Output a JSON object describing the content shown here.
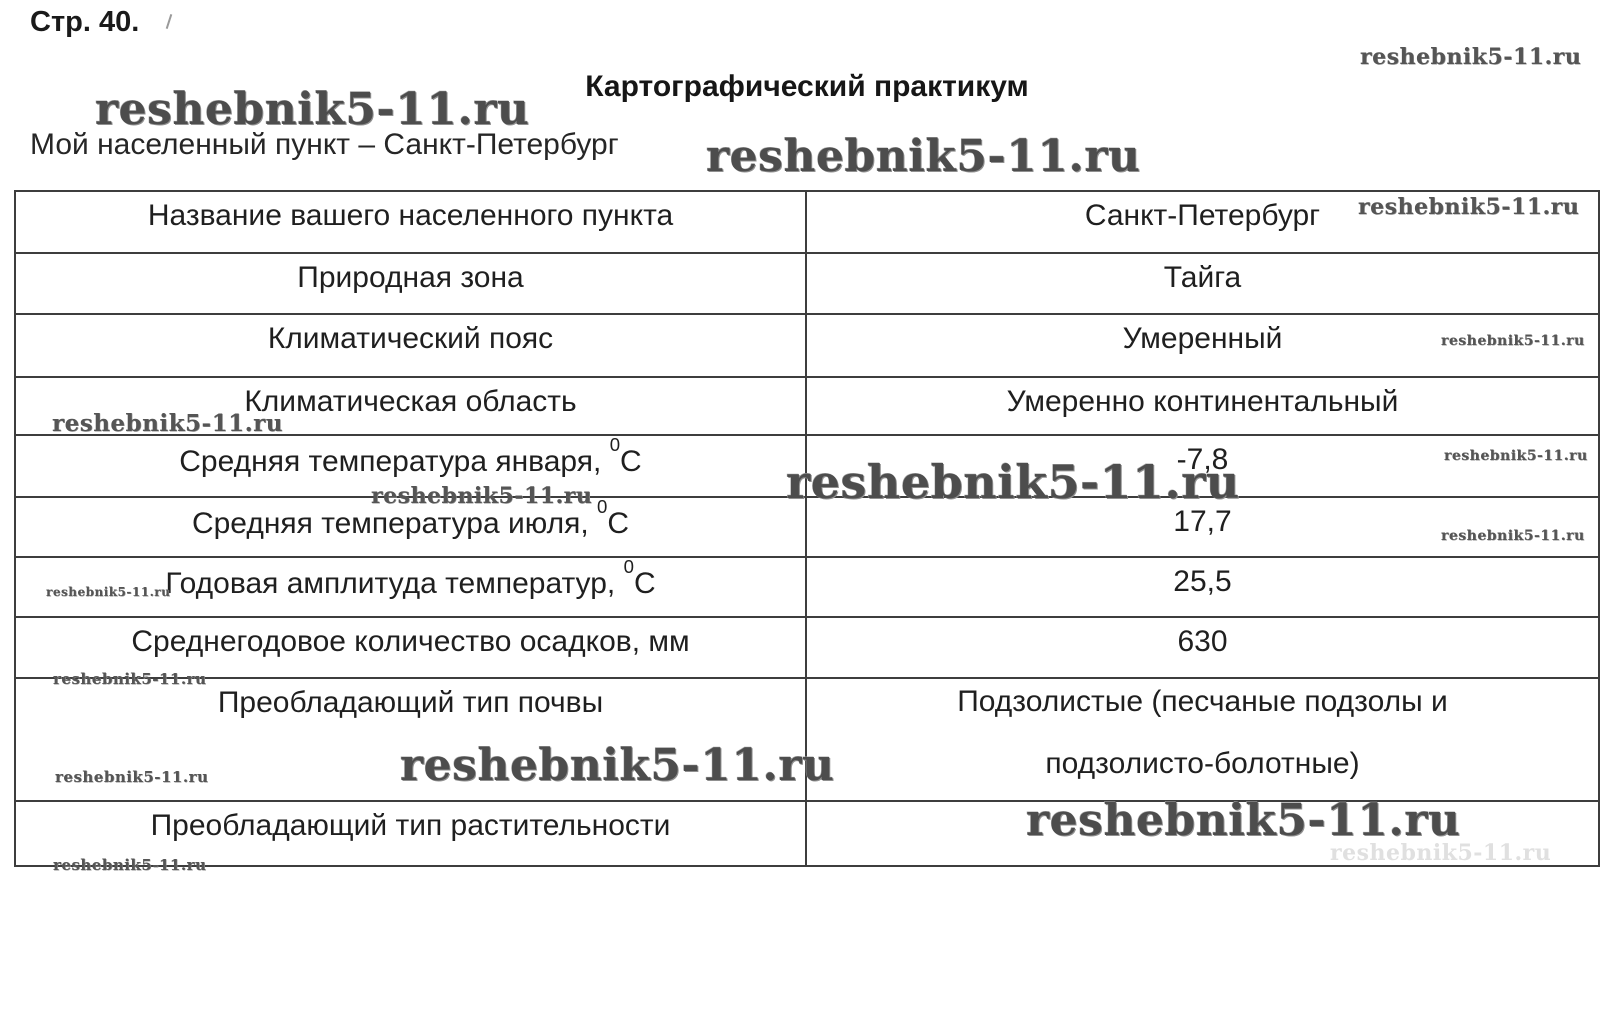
{
  "page": {
    "page_label": "Стр. 40.",
    "title": "Картографический практикум",
    "subtitle": "Мой населенный пункт – Санкт-Петербург"
  },
  "watermark": {
    "text": "reshebnik5-11.ru"
  },
  "table": {
    "rows": [
      {
        "label": "Название вашего населенного пункта",
        "value_lines": [
          "Санкт-Петербург"
        ]
      },
      {
        "label": "Природная зона",
        "value_lines": [
          "Тайга"
        ]
      },
      {
        "label": "Климатический пояс",
        "value_lines": [
          "Умеренный"
        ]
      },
      {
        "label": "Климатическая область",
        "value_lines": [
          "Умеренно континентальный"
        ]
      },
      {
        "label": "Средняя температура января, ",
        "sup": "0",
        "suffix": "С",
        "value_lines": [
          "-7,8"
        ]
      },
      {
        "label": "Средняя температура июля, ",
        "sup": "0",
        "suffix": "С",
        "value_lines": [
          "17,7"
        ]
      },
      {
        "label": "Годовая амплитуда температур, ",
        "sup": "0",
        "suffix": "С",
        "value_lines": [
          "25,5"
        ]
      },
      {
        "label": "Среднегодовое количество осадков, мм",
        "value_lines": [
          "630"
        ]
      },
      {
        "label": "Преобладающий тип почвы",
        "value_lines": [
          "Подзолистые (песчаные подзолы и",
          "подзолисто-болотные)"
        ]
      },
      {
        "label": "Преобладающий тип растительности",
        "value_lines": []
      }
    ]
  }
}
